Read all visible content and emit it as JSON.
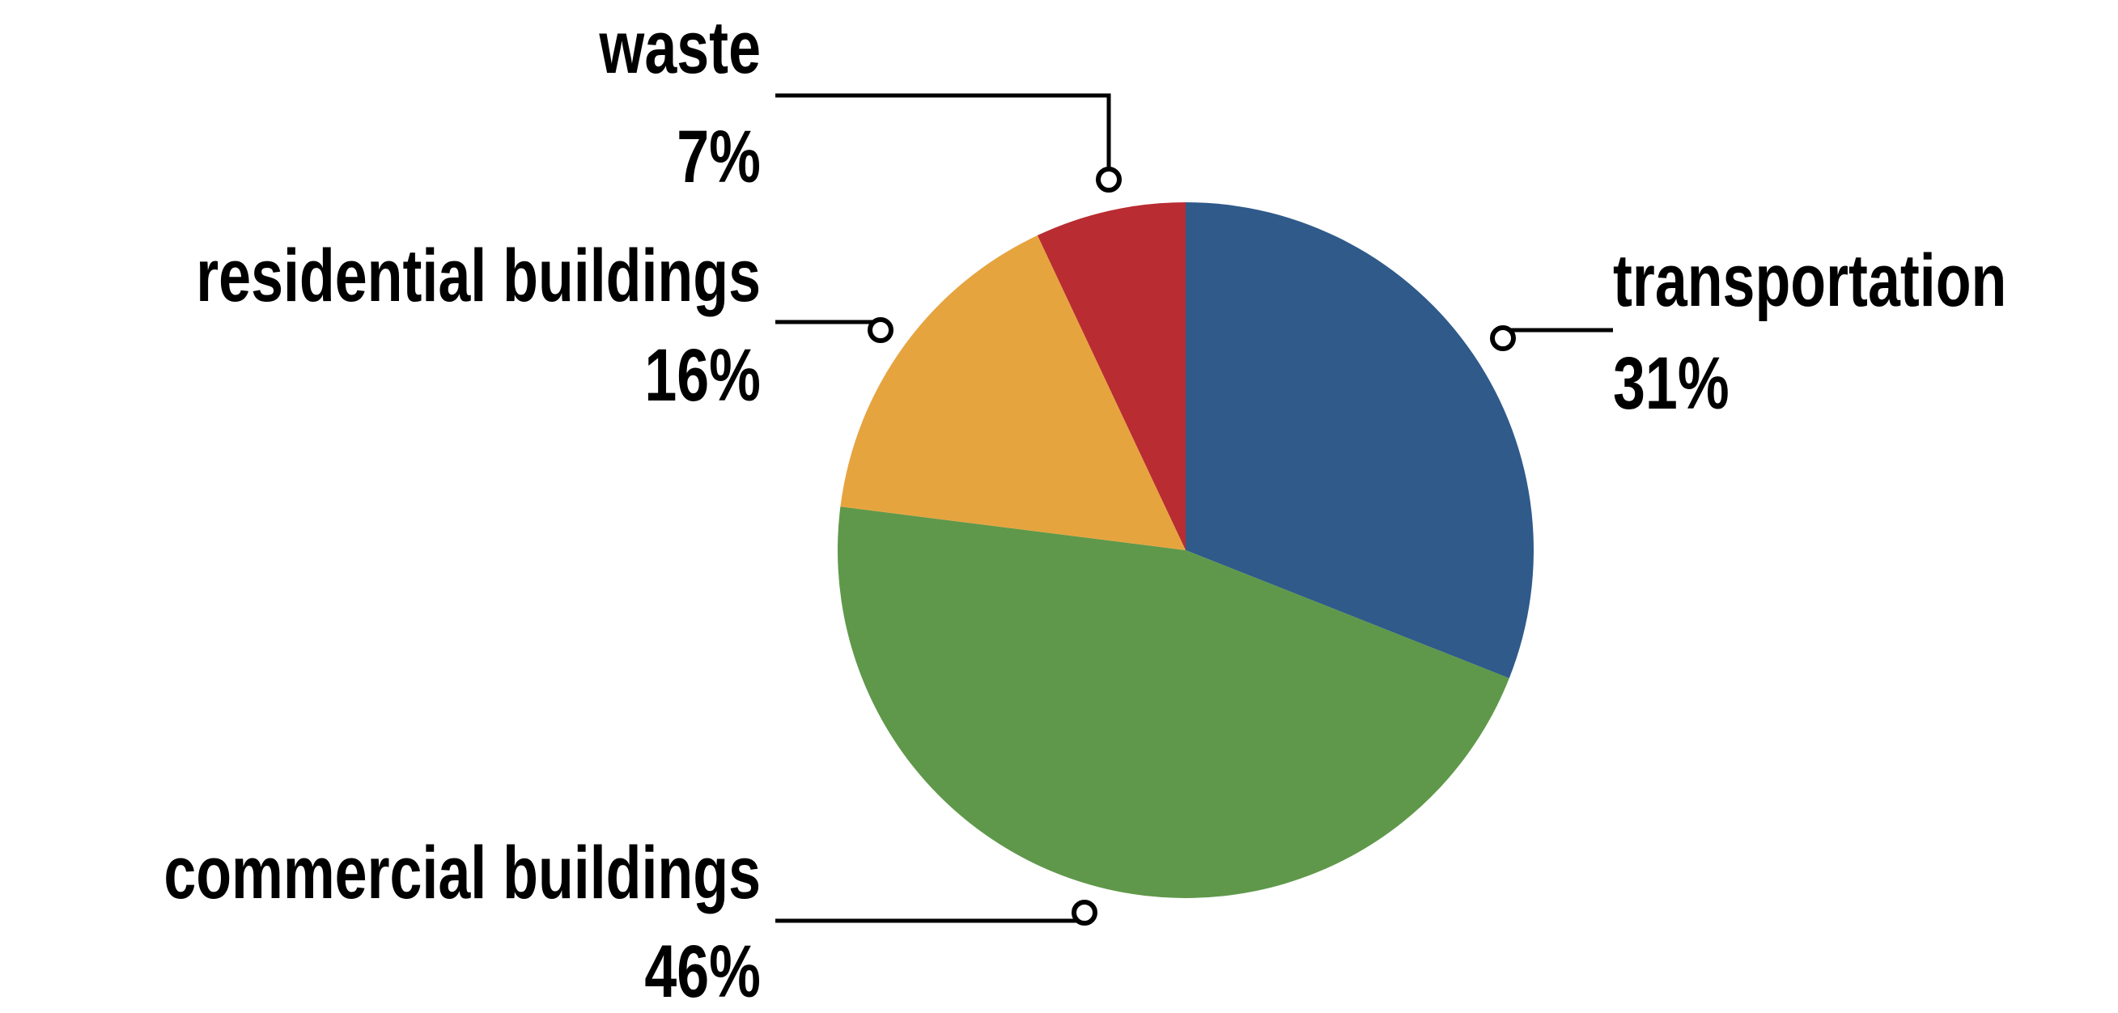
{
  "chart_data": {
    "type": "pie",
    "title": "",
    "slices": [
      {
        "label": "transportation",
        "value": 31,
        "value_label": "31%",
        "color": "#2f5a8a"
      },
      {
        "label": "commercial buildings",
        "value": 46,
        "value_label": "46%",
        "color": "#5f984a"
      },
      {
        "label": "residential buildings",
        "value": 16,
        "value_label": "16%",
        "color": "#e6a43f"
      },
      {
        "label": "waste",
        "value": 7,
        "value_label": "7%",
        "color": "#b92c32"
      }
    ],
    "start_angle": "12 o'clock",
    "direction": "clockwise",
    "legend": "none",
    "labels": "outside with leader lines"
  }
}
